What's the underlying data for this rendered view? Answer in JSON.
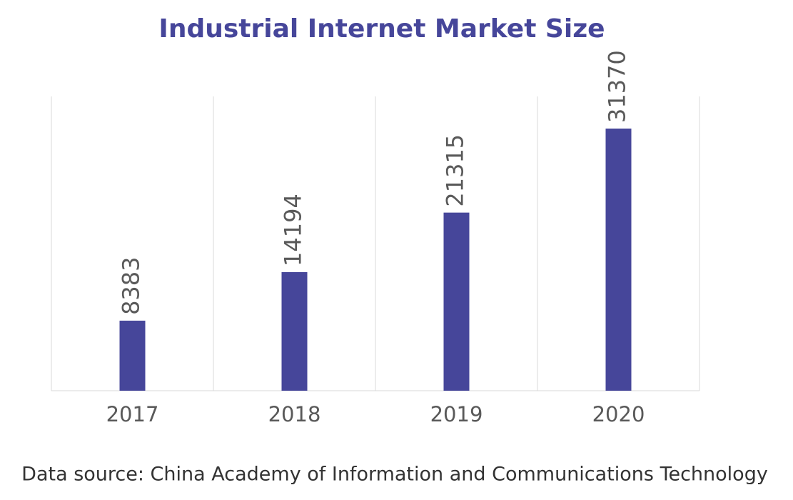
{
  "chart_data": {
    "type": "bar",
    "title": "Industrial Internet Market Size",
    "categories": [
      "2017",
      "2018",
      "2019",
      "2020"
    ],
    "values": [
      8383,
      14194,
      21315,
      31370
    ],
    "color": "#46469a",
    "source": "Data source: China Academy of Information and Communications Technology"
  }
}
